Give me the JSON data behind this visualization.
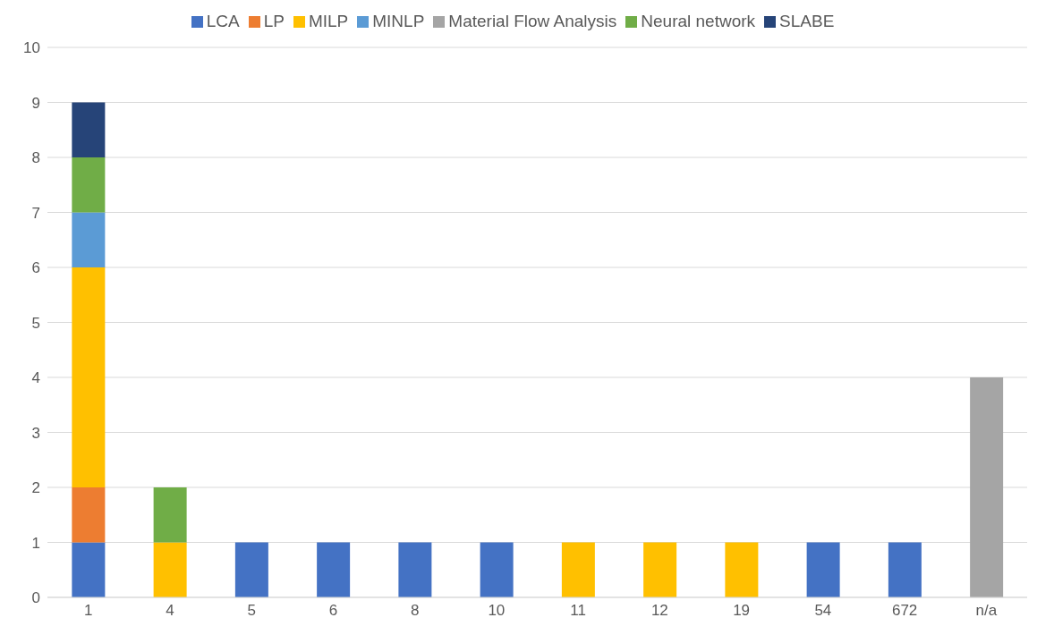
{
  "chart_data": {
    "type": "bar",
    "stacked": true,
    "categories": [
      "1",
      "4",
      "5",
      "6",
      "8",
      "10",
      "11",
      "12",
      "19",
      "54",
      "672",
      "n/a"
    ],
    "series": [
      {
        "name": "LCA",
        "color": "#4472c4",
        "values": [
          1,
          null,
          1,
          1,
          1,
          1,
          null,
          null,
          null,
          1,
          1,
          null
        ]
      },
      {
        "name": "LP",
        "color": "#ed7d31",
        "values": [
          1,
          null,
          null,
          null,
          null,
          null,
          null,
          null,
          null,
          null,
          null,
          null
        ]
      },
      {
        "name": "Material Flow Analysis",
        "color": "#a5a5a5",
        "values": [
          null,
          null,
          null,
          null,
          null,
          null,
          null,
          null,
          null,
          null,
          null,
          4
        ]
      },
      {
        "name": "MILP",
        "color": "#ffc000",
        "values": [
          4,
          1,
          null,
          null,
          null,
          null,
          1,
          1,
          1,
          null,
          null,
          null
        ]
      },
      {
        "name": "MINLP",
        "color": "#5b9bd5",
        "values": [
          1,
          null,
          null,
          null,
          null,
          null,
          null,
          null,
          null,
          null,
          null,
          null
        ]
      },
      {
        "name": "Neural network",
        "color": "#70ad47",
        "values": [
          1,
          1,
          null,
          null,
          null,
          null,
          null,
          null,
          null,
          null,
          null,
          null
        ]
      },
      {
        "name": "SLABE",
        "color": "#264478",
        "values": [
          1,
          null,
          null,
          null,
          null,
          null,
          null,
          null,
          null,
          null,
          null,
          null
        ]
      }
    ],
    "ylim": [
      0,
      10
    ],
    "yticks": [
      0,
      1,
      2,
      3,
      4,
      5,
      6,
      7,
      8,
      9,
      10
    ],
    "grid": "y",
    "legend": "top"
  }
}
